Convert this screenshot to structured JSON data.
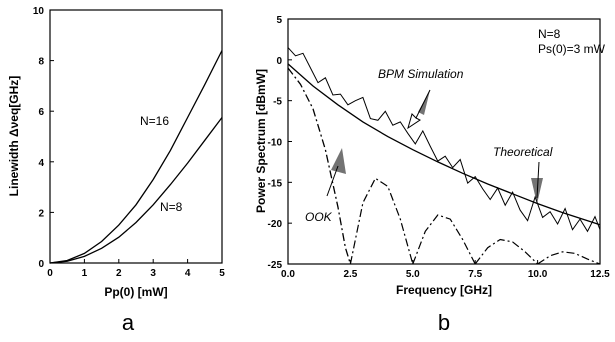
{
  "chart_data": [
    {
      "panel": "a",
      "type": "line",
      "ylabel": "Linewidth Δνeq[GHz]",
      "xlabel": "Pp(0)  [mW]",
      "xlim": [
        0,
        5
      ],
      "ylim": [
        0,
        10
      ],
      "xticks": [
        "0",
        "1",
        "2",
        "3",
        "4",
        "5"
      ],
      "yticks": [
        "0",
        "2",
        "4",
        "6",
        "8",
        "10"
      ],
      "grid": false,
      "series": [
        {
          "name": "N=16",
          "x": [
            0,
            0.5,
            1,
            1.5,
            2,
            2.5,
            3,
            3.5,
            4,
            4.5,
            5
          ],
          "y": [
            0,
            0.1,
            0.38,
            0.85,
            1.5,
            2.3,
            3.3,
            4.45,
            5.75,
            7.05,
            8.4
          ]
        },
        {
          "name": "N=8",
          "x": [
            0,
            0.5,
            1,
            1.5,
            2,
            2.5,
            3,
            3.5,
            4,
            4.5,
            5
          ],
          "y": [
            0,
            0.07,
            0.26,
            0.58,
            1.02,
            1.6,
            2.3,
            3.1,
            3.95,
            4.85,
            5.75
          ]
        }
      ]
    },
    {
      "panel": "b",
      "type": "line",
      "ylabel": "Power Spectrum [dBmW]",
      "xlabel": "Frequency [GHz]",
      "xlim": [
        0,
        12.5
      ],
      "ylim": [
        -25,
        5
      ],
      "xticks": [
        "0.0",
        "2.5",
        "5.0",
        "7.5",
        "10.0",
        "12.5"
      ],
      "yticks": [
        "5",
        "0",
        "-5",
        "-10",
        "-15",
        "-20",
        "-25"
      ],
      "grid": false,
      "legend_text": [
        "N=8",
        "Ps(0)=3 mW"
      ],
      "annotations": [
        "BPM Simulation",
        "Theoretical",
        "OOK"
      ],
      "series": [
        {
          "name": "Theoretical",
          "style": "solid",
          "x": [
            0,
            1,
            2,
            3,
            4,
            5,
            6,
            7,
            8,
            9,
            10,
            11,
            12.5
          ],
          "y": [
            -0.5,
            -3.2,
            -5.5,
            -7.6,
            -9.4,
            -11.0,
            -12.5,
            -13.9,
            -15.2,
            -16.4,
            -17.6,
            -18.7,
            -20.2
          ]
        },
        {
          "name": "BPM Simulation",
          "style": "noisy",
          "x": [
            0,
            0.3,
            0.6,
            0.9,
            1.2,
            1.5,
            1.8,
            2.1,
            2.4,
            2.7,
            3.0,
            3.3,
            3.6,
            3.9,
            4.2,
            4.5,
            4.8,
            5.1,
            5.4,
            5.7,
            6.0,
            6.3,
            6.6,
            6.9,
            7.2,
            7.5,
            7.8,
            8.1,
            8.4,
            8.7,
            9.0,
            9.3,
            9.6,
            9.9,
            10.2,
            10.5,
            10.8,
            11.1,
            11.4,
            11.7,
            12.0,
            12.3,
            12.5
          ],
          "y": [
            1.5,
            0.5,
            0.8,
            -1.0,
            -2.8,
            -2.2,
            -4.3,
            -4.2,
            -5.5,
            -5.0,
            -4.6,
            -7.2,
            -7.4,
            -6.3,
            -8.0,
            -7.6,
            -9.0,
            -10.3,
            -8.7,
            -10.6,
            -12.4,
            -11.8,
            -13.2,
            -12.2,
            -15.1,
            -14.3,
            -15.8,
            -17.1,
            -15.7,
            -17.8,
            -16.2,
            -18.4,
            -19.7,
            -16.8,
            -19.3,
            -18.6,
            -20.1,
            -18.2,
            -20.8,
            -19.5,
            -21.0,
            -19.2,
            -20.8
          ]
        },
        {
          "name": "OOK",
          "style": "dash-dot",
          "x": [
            0,
            0.5,
            1,
            1.5,
            2.0,
            2.3,
            2.5
          ],
          "y": [
            -1.0,
            -3.0,
            -6.0,
            -11.0,
            -18.0,
            -23.0,
            -25.0
          ],
          "lobes": [
            {
              "x": [
                2.5,
                3.0,
                3.5,
                4.0,
                4.5,
                5.0
              ],
              "y": [
                -25,
                -17.5,
                -14.5,
                -15.5,
                -19.5,
                -25
              ]
            },
            {
              "x": [
                5.0,
                5.5,
                6.0,
                6.5,
                7.0,
                7.5
              ],
              "y": [
                -25,
                -21.0,
                -19.0,
                -19.5,
                -22.0,
                -25
              ]
            },
            {
              "x": [
                7.5,
                8.0,
                8.5,
                9.0,
                9.5,
                10.0
              ],
              "y": [
                -25,
                -23.0,
                -22.0,
                -22.3,
                -23.5,
                -25
              ]
            },
            {
              "x": [
                10.0,
                10.5,
                11.0,
                11.5,
                12.0,
                12.5
              ],
              "y": [
                -25,
                -24.0,
                -23.5,
                -23.7,
                -24.4,
                -25
              ]
            }
          ]
        }
      ]
    }
  ],
  "panel_labels": [
    "a",
    "b"
  ]
}
